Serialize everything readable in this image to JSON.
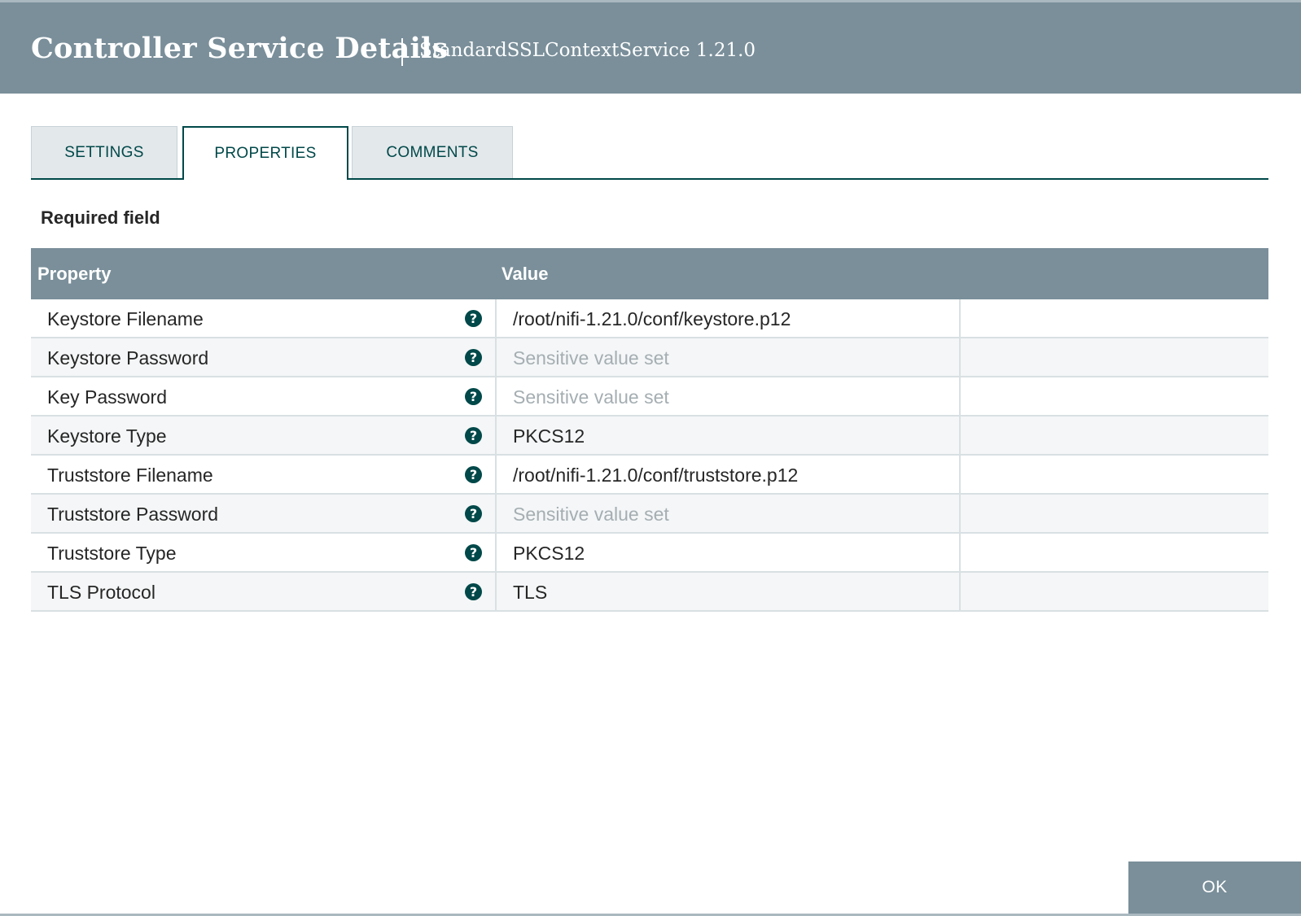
{
  "header": {
    "title": "Controller Service Details",
    "subtitle": "StandardSSLContextService 1.21.0"
  },
  "tabs": [
    {
      "label": "SETTINGS",
      "active": false
    },
    {
      "label": "PROPERTIES",
      "active": true
    },
    {
      "label": "COMMENTS",
      "active": false
    }
  ],
  "required_label": "Required field",
  "table": {
    "columns": {
      "property": "Property",
      "value": "Value"
    },
    "rows": [
      {
        "name": "Keystore Filename",
        "value": "/root/nifi-1.21.0/conf/keystore.p12",
        "sensitive": false
      },
      {
        "name": "Keystore Password",
        "value": "Sensitive value set",
        "sensitive": true
      },
      {
        "name": "Key Password",
        "value": "Sensitive value set",
        "sensitive": true
      },
      {
        "name": "Keystore Type",
        "value": "PKCS12",
        "sensitive": false
      },
      {
        "name": "Truststore Filename",
        "value": "/root/nifi-1.21.0/conf/truststore.p12",
        "sensitive": false
      },
      {
        "name": "Truststore Password",
        "value": "Sensitive value set",
        "sensitive": true
      },
      {
        "name": "Truststore Type",
        "value": "PKCS12",
        "sensitive": false
      },
      {
        "name": "TLS Protocol",
        "value": "TLS",
        "sensitive": false
      }
    ]
  },
  "icons": {
    "help": "question-circle-icon"
  },
  "colors": {
    "header_bg": "#7a8f9a",
    "accent": "#004849",
    "sensitive_text": "#a5aeb2"
  },
  "footer": {
    "ok_label": "OK"
  }
}
